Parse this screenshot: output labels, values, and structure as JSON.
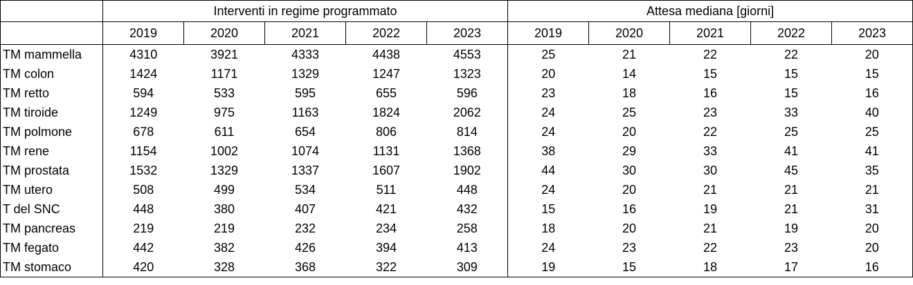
{
  "headers": {
    "group_interventi": "Interventi in regime programmato",
    "group_attesa": "Attesa mediana [giorni]",
    "years": [
      "2019",
      "2020",
      "2021",
      "2022",
      "2023"
    ]
  },
  "rows": [
    {
      "label": "TM mammella",
      "interventi": [
        "4310",
        "3921",
        "4333",
        "4438",
        "4553"
      ],
      "attesa": [
        "25",
        "21",
        "22",
        "22",
        "20"
      ]
    },
    {
      "label": "TM colon",
      "interventi": [
        "1424",
        "1171",
        "1329",
        "1247",
        "1323"
      ],
      "attesa": [
        "20",
        "14",
        "15",
        "15",
        "15"
      ]
    },
    {
      "label": "TM retto",
      "interventi": [
        "594",
        "533",
        "595",
        "655",
        "596"
      ],
      "attesa": [
        "23",
        "18",
        "16",
        "15",
        "16"
      ]
    },
    {
      "label": "TM tiroide",
      "interventi": [
        "1249",
        "975",
        "1163",
        "1824",
        "2062"
      ],
      "attesa": [
        "24",
        "25",
        "23",
        "33",
        "40"
      ]
    },
    {
      "label": "TM polmone",
      "interventi": [
        "678",
        "611",
        "654",
        "806",
        "814"
      ],
      "attesa": [
        "24",
        "20",
        "22",
        "25",
        "25"
      ]
    },
    {
      "label": "TM rene",
      "interventi": [
        "1154",
        "1002",
        "1074",
        "1131",
        "1368"
      ],
      "attesa": [
        "38",
        "29",
        "33",
        "41",
        "41"
      ]
    },
    {
      "label": "TM prostata",
      "interventi": [
        "1532",
        "1329",
        "1337",
        "1607",
        "1902"
      ],
      "attesa": [
        "44",
        "30",
        "30",
        "45",
        "35"
      ]
    },
    {
      "label": "TM utero",
      "interventi": [
        "508",
        "499",
        "534",
        "511",
        "448"
      ],
      "attesa": [
        "24",
        "20",
        "21",
        "21",
        "21"
      ]
    },
    {
      "label": "T del SNC",
      "interventi": [
        "448",
        "380",
        "407",
        "421",
        "432"
      ],
      "attesa": [
        "15",
        "16",
        "19",
        "21",
        "31"
      ]
    },
    {
      "label": "TM pancreas",
      "interventi": [
        "219",
        "219",
        "232",
        "234",
        "258"
      ],
      "attesa": [
        "18",
        "20",
        "21",
        "19",
        "20"
      ]
    },
    {
      "label": "TM fegato",
      "interventi": [
        "442",
        "382",
        "426",
        "394",
        "413"
      ],
      "attesa": [
        "24",
        "23",
        "22",
        "23",
        "20"
      ]
    },
    {
      "label": "TM stomaco",
      "interventi": [
        "420",
        "328",
        "368",
        "322",
        "309"
      ],
      "attesa": [
        "19",
        "15",
        "18",
        "17",
        "16"
      ]
    }
  ]
}
